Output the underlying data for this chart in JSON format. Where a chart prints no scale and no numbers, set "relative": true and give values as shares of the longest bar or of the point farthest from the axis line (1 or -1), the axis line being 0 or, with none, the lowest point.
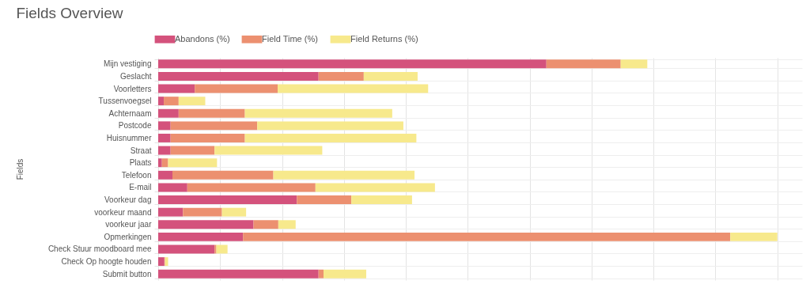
{
  "chart_data": {
    "type": "bar",
    "title": "Fields Overview",
    "ylabel": "Fields",
    "orientation": "horizontal",
    "stacked": true,
    "relative": true,
    "grid": true,
    "legend": "top",
    "categories": [
      "Mijn vestiging",
      "Geslacht",
      "Voorletters",
      "Tussenvoegsel",
      "Achternaam",
      "Postcode",
      "Huisnummer",
      "Straat",
      "Plaats",
      "Telefoon",
      "E-mail",
      "Voorkeur dag",
      "voorkeur maand",
      "voorkeur jaar",
      "Opmerkingen",
      "Check Stuur moodboard mee",
      "Check Op hoogte houden",
      "Submit button"
    ],
    "series": [
      {
        "name": "Abandons (%)",
        "color": "#d4527c",
        "values": [
          0.627,
          0.259,
          0.059,
          0.009,
          0.033,
          0.02,
          0.02,
          0.02,
          0.006,
          0.023,
          0.047,
          0.224,
          0.04,
          0.154,
          0.137,
          0.091,
          0.01,
          0.259
        ]
      },
      {
        "name": "Field Time (%)",
        "color": "#ec9070",
        "values": [
          0.12,
          0.073,
          0.134,
          0.024,
          0.107,
          0.14,
          0.12,
          0.071,
          0.01,
          0.163,
          0.207,
          0.088,
          0.063,
          0.04,
          0.787,
          0.003,
          0.001,
          0.008
        ]
      },
      {
        "name": "Field Returns (%)",
        "color": "#f7e98c",
        "values": [
          0.043,
          0.087,
          0.243,
          0.043,
          0.238,
          0.236,
          0.277,
          0.174,
          0.079,
          0.228,
          0.193,
          0.098,
          0.039,
          0.028,
          0.076,
          0.018,
          0.005,
          0.069
        ]
      }
    ]
  }
}
